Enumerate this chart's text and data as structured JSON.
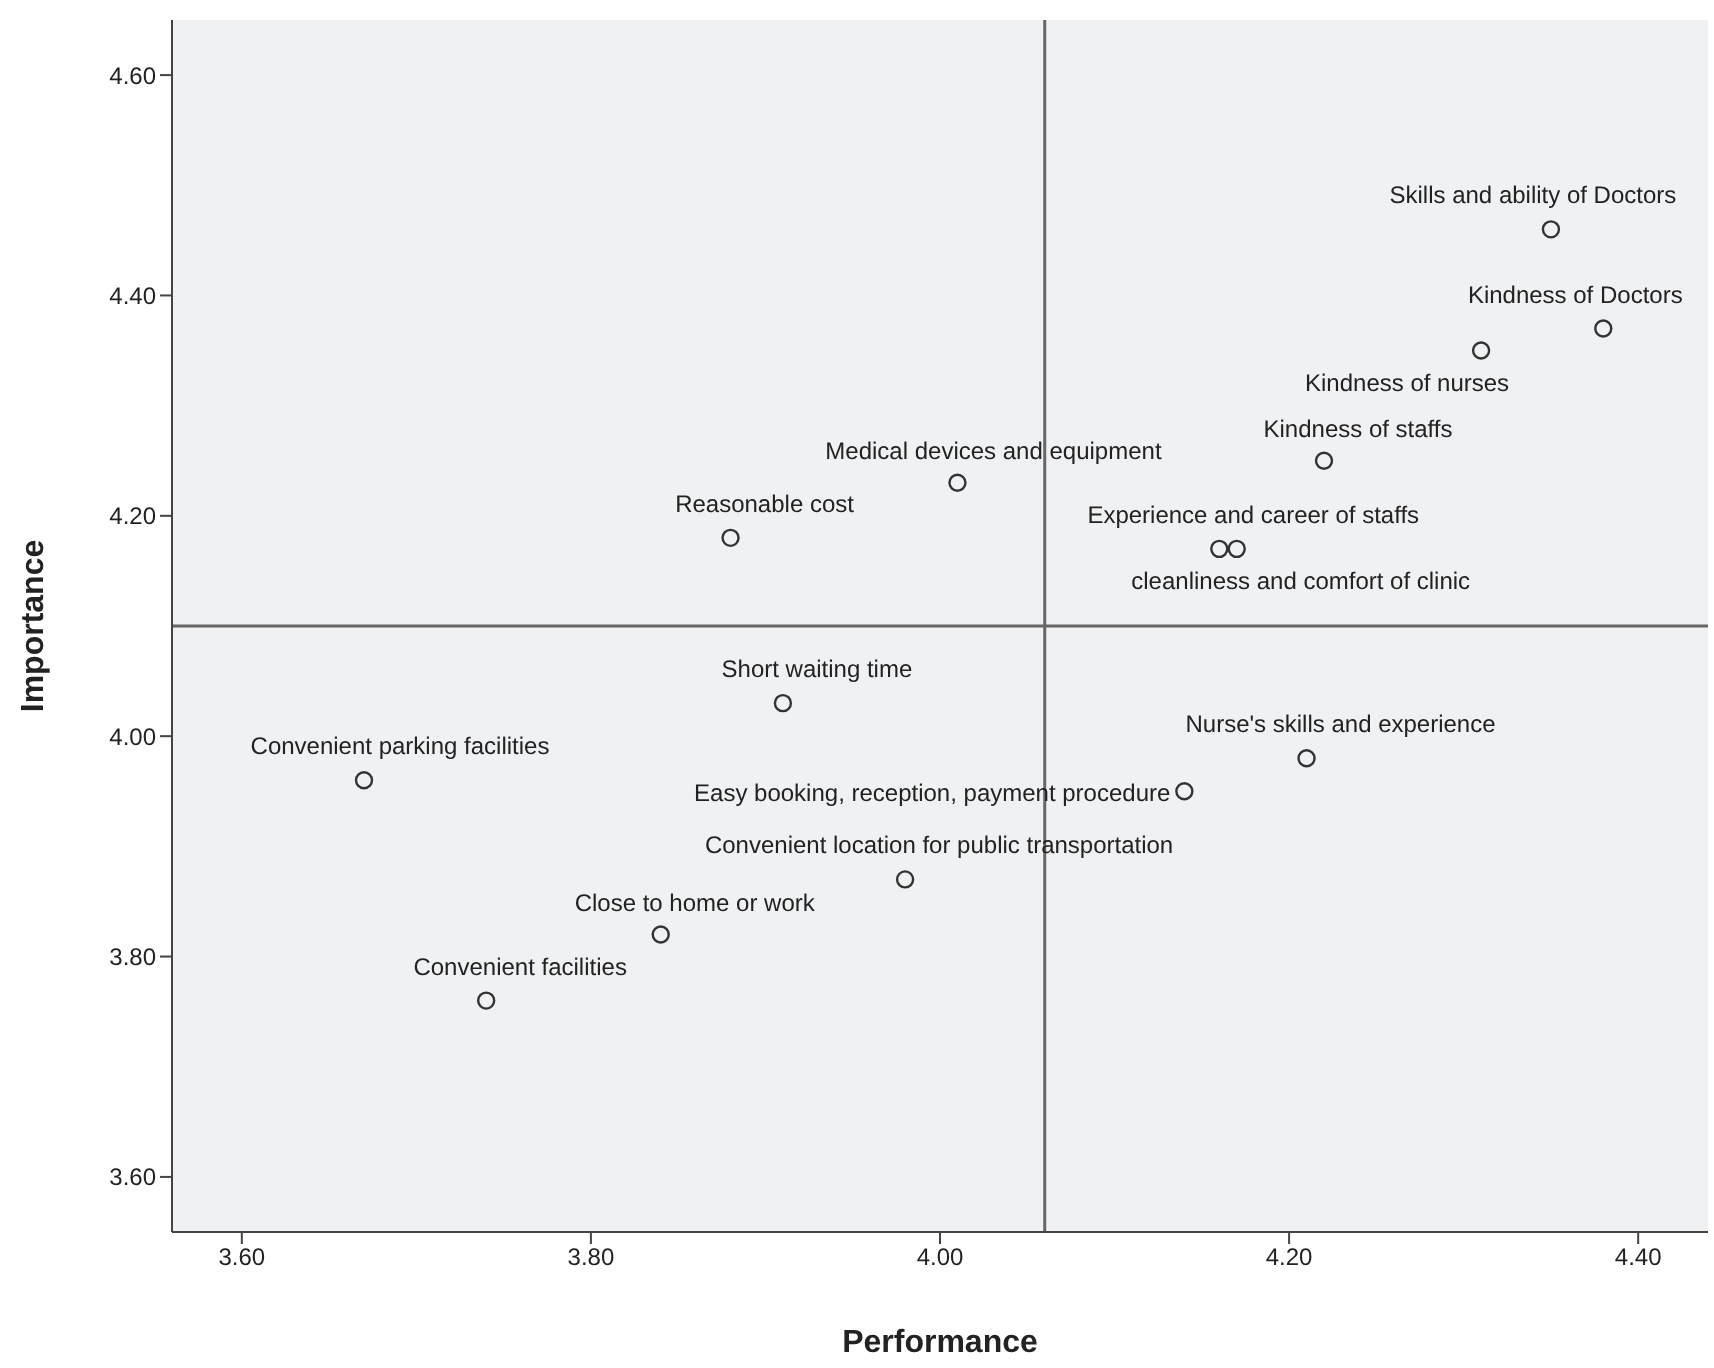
{
  "chart_data": {
    "type": "scatter",
    "xlabel": "Performance",
    "ylabel": "Importance",
    "x": [
      4.35,
      4.38,
      4.31,
      4.22,
      4.01,
      3.88,
      4.16,
      4.17,
      3.91,
      3.67,
      4.14,
      4.21,
      3.98,
      3.84,
      3.74
    ],
    "series": [
      {
        "color": "#333333",
        "values": [
          4.46,
          4.37,
          4.35,
          4.25,
          4.23,
          4.18,
          4.17,
          4.17,
          4.03,
          3.96,
          3.95,
          3.98,
          3.87,
          3.82,
          3.76
        ]
      }
    ],
    "annotations": [
      {
        "text": "Skills and ability of Doctors",
        "x": 4.35,
        "y": 4.46
      },
      {
        "text": "Kindness of Doctors",
        "x": 4.38,
        "y": 4.37
      },
      {
        "text": "Kindness of nurses",
        "x": 4.31,
        "y": 4.35
      },
      {
        "text": "Kindness of staffs",
        "x": 4.22,
        "y": 4.25
      },
      {
        "text": "Medical devices and equipment",
        "x": 4.01,
        "y": 4.23
      },
      {
        "text": "Reasonable cost",
        "x": 3.88,
        "y": 4.18
      },
      {
        "text": "Experience and career of staffs",
        "x": 4.16,
        "y": 4.17
      },
      {
        "text": "cleanliness and comfort of clinic",
        "x": 4.17,
        "y": 4.17
      },
      {
        "text": "Short waiting time",
        "x": 3.91,
        "y": 4.03
      },
      {
        "text": "Convenient parking facilities",
        "x": 3.67,
        "y": 3.96
      },
      {
        "text": "Easy booking, reception, payment procedure",
        "x": 4.14,
        "y": 3.95
      },
      {
        "text": "Nurse's skills and experience",
        "x": 4.21,
        "y": 3.98
      },
      {
        "text": "Convenient location for public transportation",
        "x": 3.98,
        "y": 3.87
      },
      {
        "text": "Close to home or work",
        "x": 3.84,
        "y": 3.82
      },
      {
        "text": "Convenient facilities",
        "x": 3.74,
        "y": 3.76
      }
    ],
    "xlim": [
      3.56,
      4.44
    ],
    "xticks": [
      {
        "value": 3.6,
        "label": "3.60"
      },
      {
        "value": 3.8,
        "label": "3.80"
      },
      {
        "value": 4.0,
        "label": "4.00"
      },
      {
        "value": 4.2,
        "label": "4.20"
      },
      {
        "value": 4.4,
        "label": "4.40"
      }
    ],
    "ylim": [
      3.55,
      4.65
    ],
    "yticks": [
      {
        "value": 3.6,
        "label": "3.60"
      },
      {
        "value": 3.8,
        "label": "3.80"
      },
      {
        "value": 4.0,
        "label": "4.00"
      },
      {
        "value": 4.2,
        "label": "4.20"
      },
      {
        "value": 4.4,
        "label": "4.40"
      },
      {
        "value": 4.6,
        "label": "4.60"
      }
    ],
    "ref_lines": [
      {
        "axis": "x",
        "value": 4.06,
        "color": "#666666"
      },
      {
        "axis": "y",
        "value": 4.1,
        "color": "#666666"
      }
    ],
    "grid": false,
    "marker": "circle"
  }
}
